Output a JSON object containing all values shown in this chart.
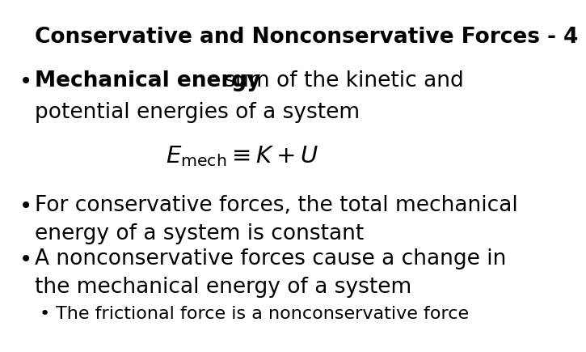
{
  "background_color": "#ffffff",
  "title": "Conservative and Nonconservative Forces - 4",
  "title_fontsize": 19,
  "title_fontweight": "bold",
  "bullet1_bold": "Mechanical energy",
  "bullet1_rest": ": sum of the kinetic and",
  "bullet1_line2": "potential energies of a system",
  "bullet1_fontsize": 19,
  "equation": "$E_{\\mathrm{mech}} \\equiv K + U$",
  "equation_fontsize": 21,
  "bullet2_text": "For conservative forces, the total mechanical\nenergy of a system is constant",
  "bullet2_fontsize": 19,
  "bullet3_text": "A nonconservative forces cause a change in\nthe mechanical energy of a system",
  "bullet3_fontsize": 19,
  "subbullet_text": "The frictional force is a nonconservative force",
  "subbullet_fontsize": 16,
  "bullet_color": "#000000",
  "text_color": "#000000"
}
